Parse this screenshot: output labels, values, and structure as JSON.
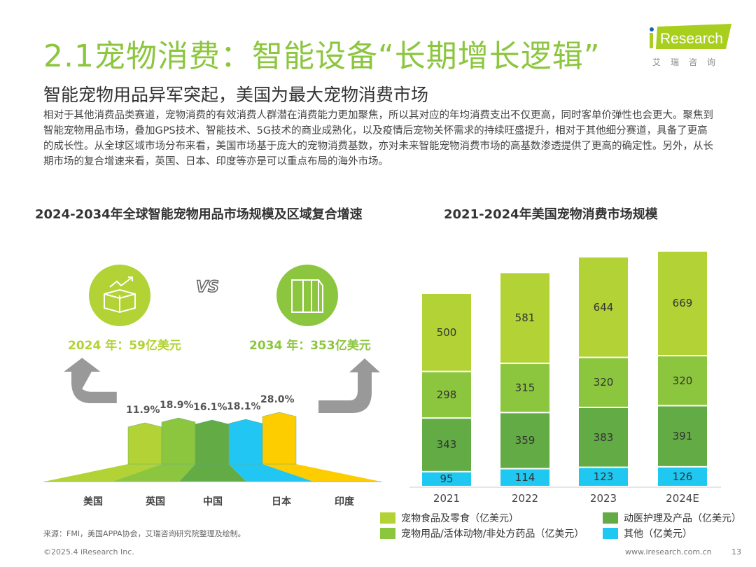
{
  "header": {
    "title": "2.1宠物消费：智能设备“长期增长逻辑”",
    "logo_text": "iResearch",
    "logo_sub": "艾瑞咨询",
    "subtitle": "智能宠物用品异军突起，美国为最大宠物消费市场"
  },
  "body_text": "相对于其他消费品类赛道，宠物消费的有效消费人群潜在消费能力更加聚焦，所以其对应的年均消费支出不仅更高，同时客单价弹性也会更大。聚焦到智能宠物用品市场，叠加GPS技术、智能技术、5G技术的商业成熟化，以及疫情后宠物关怀需求的持续旺盛提升，相对于其他细分赛道，具备了更高的成长性。从全球区域市场分布来看，美国市场基于庞大的宠物消费基数，亦对未来智能宠物消费市场的高基数渗透提供了更高的确定性。另外，从长期市场的复合增速来看，英国、日本、印度等亦是可以重点布局的海外市场。",
  "left_chart": {
    "title": "2024-2034年全球智能宠物用品市场规模及区域复合增速",
    "vs_label": "VS",
    "start_label": "2024 年：59亿美元",
    "end_label": "2034 年：353亿美元",
    "icons": [
      "box-growth-icon",
      "buildings-icon"
    ],
    "regions": [
      {
        "name": "美国",
        "cagr": "11.9%",
        "color": "#b2d235"
      },
      {
        "name": "英国",
        "cagr": "18.9%",
        "color": "#8cc63e"
      },
      {
        "name": "中国",
        "cagr": "16.1%",
        "color": "#62ab45"
      },
      {
        "name": "日本",
        "cagr": "18.1%",
        "color": "#21c6f2"
      },
      {
        "name": "印度",
        "cagr": "28.0%",
        "color": "#fecd00"
      }
    ]
  },
  "chart_data": {
    "type": "bar",
    "stacked": true,
    "title": "2021-2024年美国宠物消费市场规模",
    "categories": [
      "2021",
      "2022",
      "2023",
      "2024E"
    ],
    "series": [
      {
        "name": "其他（亿美元）",
        "values": [
          95,
          114,
          123,
          126
        ],
        "color": "#1ec8f0"
      },
      {
        "name": "动医护理及产品（亿美元）",
        "values": [
          343,
          359,
          383,
          391
        ],
        "color": "#62ab45"
      },
      {
        "name": "宠物用品/活体动物/非处方药品（亿美元）",
        "values": [
          298,
          315,
          320,
          320
        ],
        "color": "#8cc63e"
      },
      {
        "name": "宠物食品及零食（亿美元）",
        "values": [
          500,
          581,
          644,
          669
        ],
        "color": "#b2d235"
      }
    ],
    "legend": "bottom",
    "grid": false
  },
  "footer": {
    "source": "来源：FMI，美国APPA协会，艾瑞咨询研究院整理及绘制。",
    "copyright": "©2025.4 iResearch Inc.",
    "url": "www.iresearch.com.cn",
    "page": "13"
  }
}
